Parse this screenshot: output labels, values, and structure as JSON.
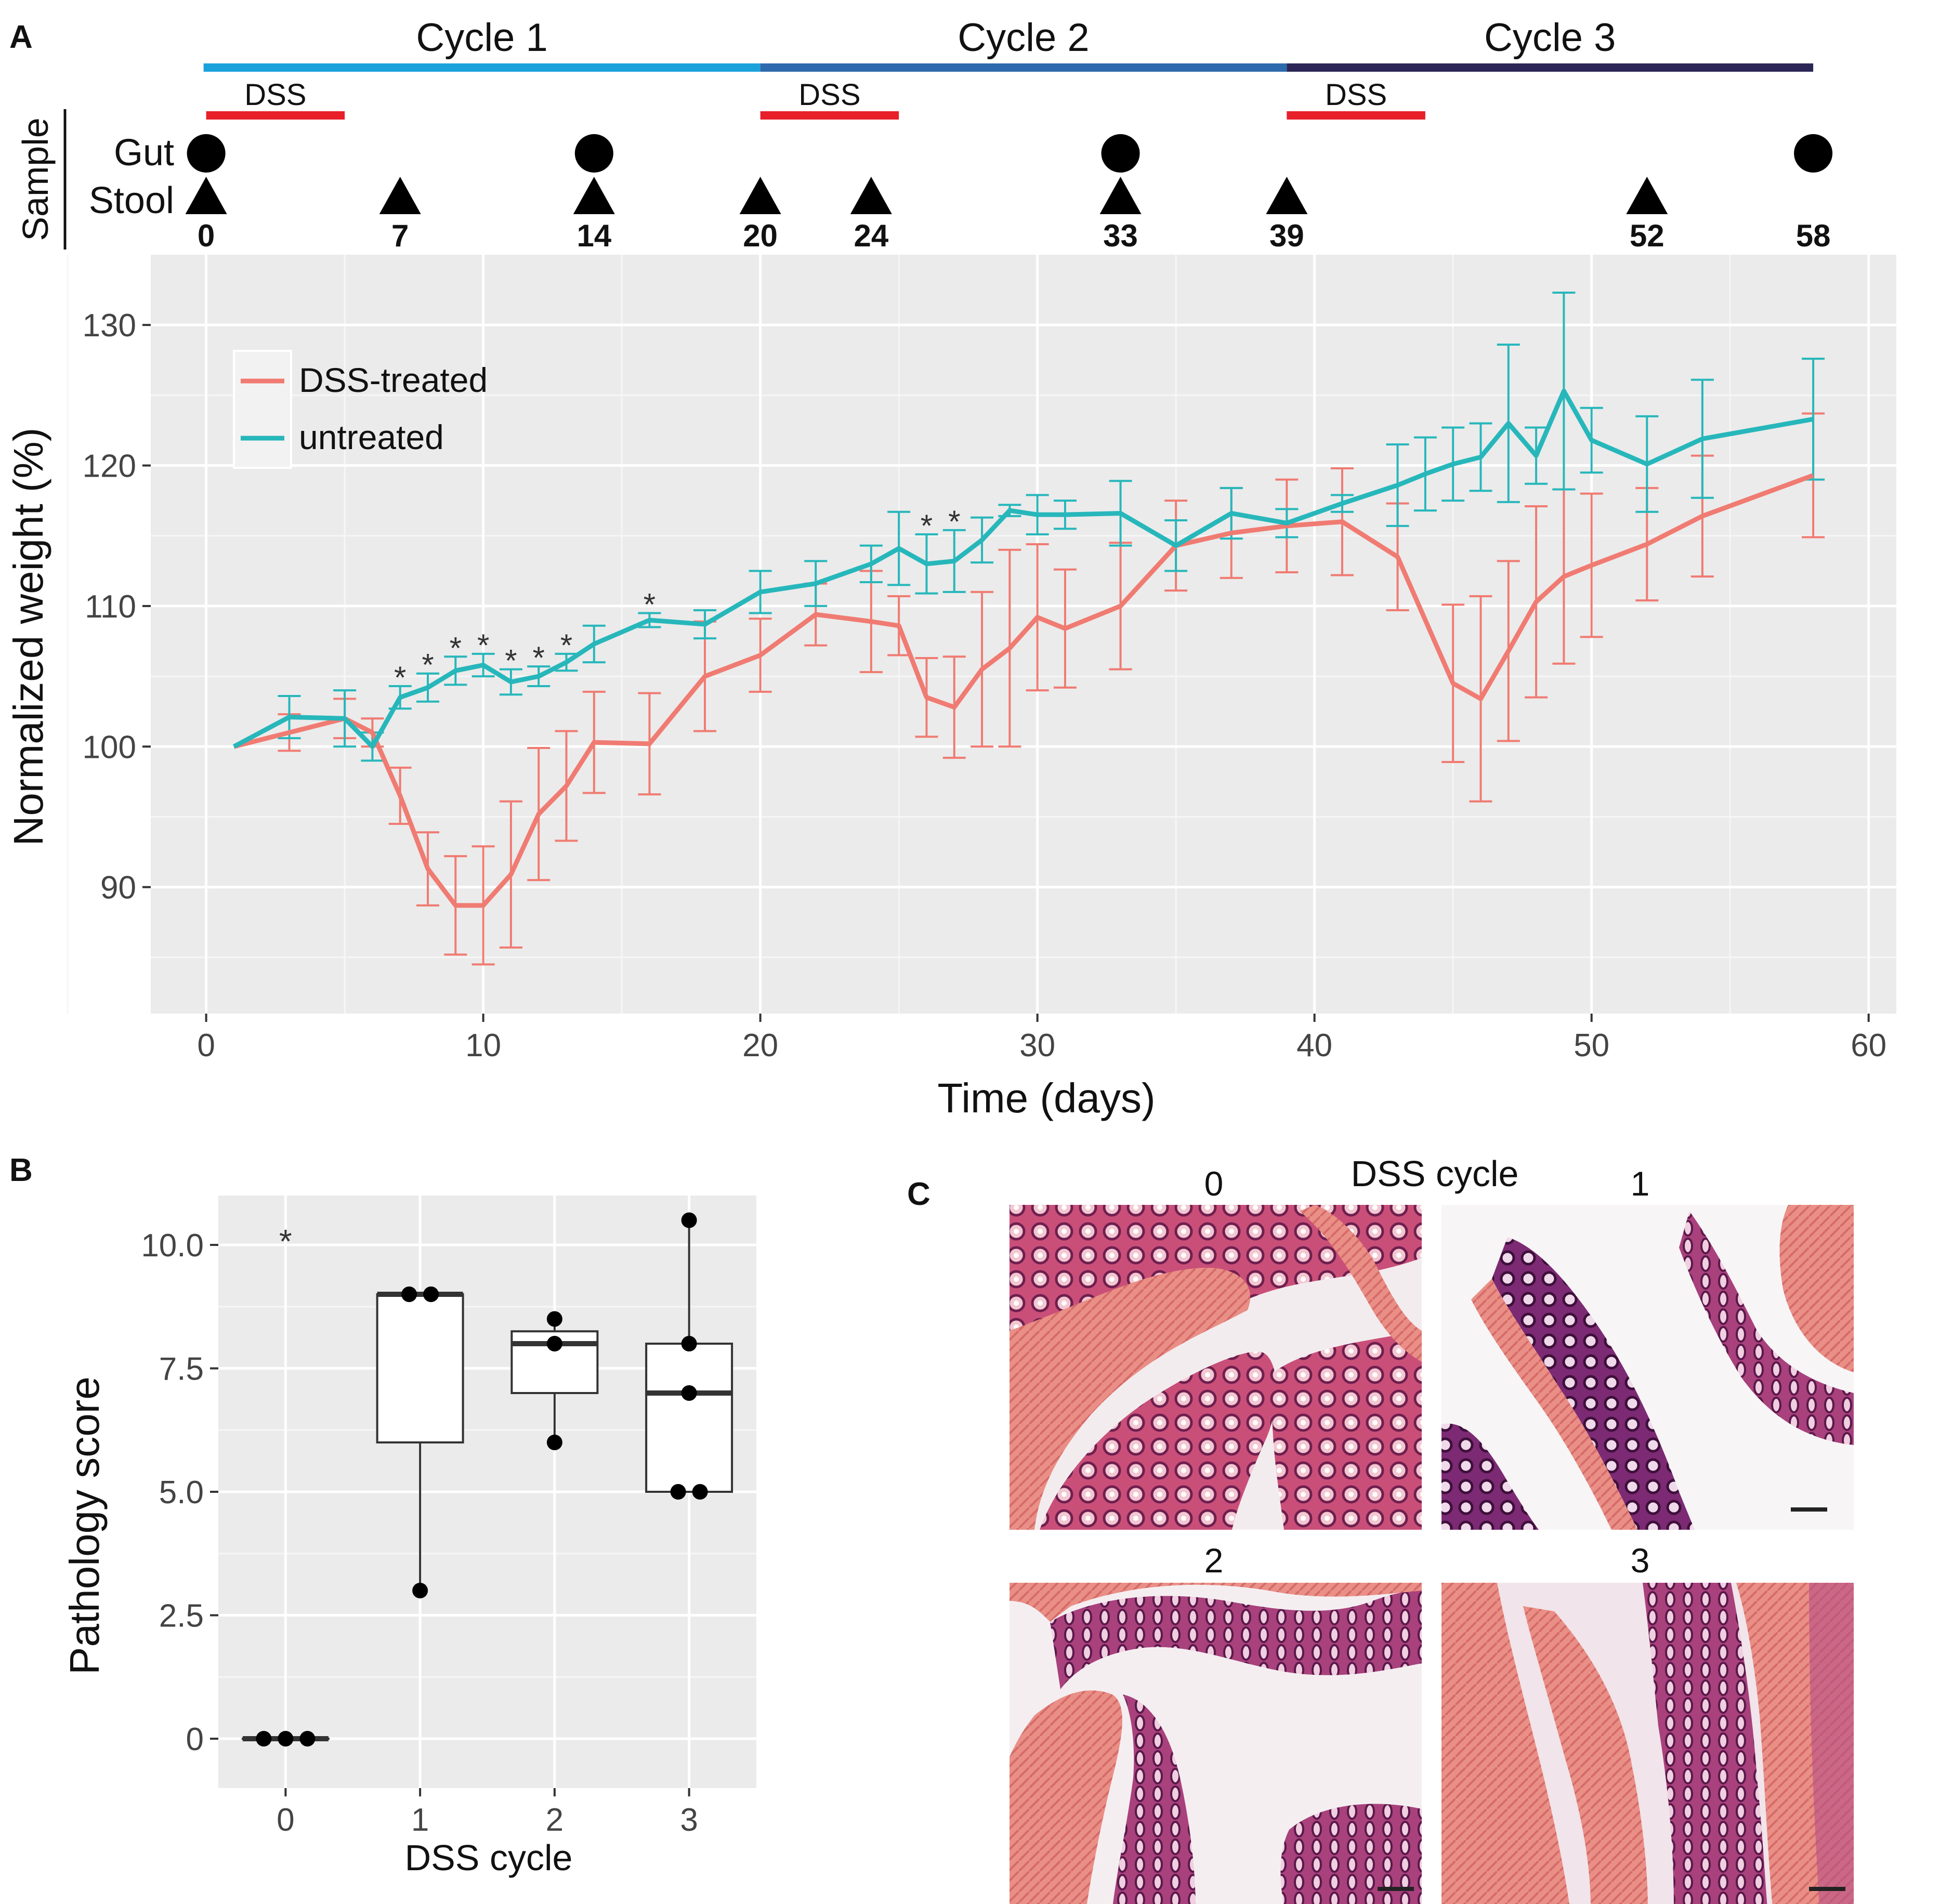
{
  "panel_labels": {
    "a": "A",
    "b": "B",
    "c": "C"
  },
  "timeline": {
    "cycles": [
      {
        "label": "Cycle 1",
        "start": 0,
        "end": 20,
        "color": "#1ba2db"
      },
      {
        "label": "Cycle 2",
        "start": 20,
        "end": 39,
        "color": "#2d6aad"
      },
      {
        "label": "Cycle 3",
        "start": 39,
        "end": 58,
        "color": "#2b2656"
      }
    ],
    "dss_bars": [
      {
        "label": "DSS",
        "start": 0,
        "end": 5
      },
      {
        "label": "DSS",
        "start": 20,
        "end": 25
      },
      {
        "label": "DSS",
        "start": 39,
        "end": 44
      }
    ],
    "sample_label": "Sample",
    "gut_label": "Gut",
    "stool_label": "Stool",
    "gut_days": [
      0,
      14,
      33,
      58
    ],
    "stool_days": [
      0,
      7,
      14,
      20,
      24,
      33,
      39,
      52
    ],
    "day_labels": [
      "0",
      "7",
      "14",
      "20",
      "24",
      "33",
      "39",
      "52",
      "58"
    ],
    "day_positions": [
      0,
      7,
      14,
      20,
      24,
      33,
      39,
      52,
      58
    ],
    "dss_color": "#e8202a"
  },
  "chart_data": [
    {
      "type": "line",
      "title": "",
      "xlabel": "Time (days)",
      "ylabel": "Normalized weight (%)",
      "xlim": [
        -2,
        61
      ],
      "ylim": [
        81,
        135
      ],
      "xticks": [
        0,
        10,
        20,
        30,
        40,
        50,
        60
      ],
      "yticks": [
        90,
        100,
        110,
        120,
        130
      ],
      "legend": {
        "position": "top-left",
        "entries": [
          "DSS-treated",
          "untreated"
        ]
      },
      "series": [
        {
          "name": "DSS-treated",
          "color": "#f07b72",
          "x": [
            1,
            3,
            5,
            6,
            7,
            8,
            9,
            10,
            11,
            12,
            13,
            14,
            16,
            18,
            20,
            22,
            24,
            25,
            26,
            27,
            28,
            29,
            30,
            31,
            33,
            35,
            37,
            39,
            41,
            43,
            45,
            46,
            47,
            48,
            49,
            50,
            52,
            54,
            58
          ],
          "y": [
            100,
            101,
            102,
            101,
            96.5,
            91.3,
            88.7,
            88.7,
            90.9,
            95.2,
            97.2,
            100.3,
            100.2,
            105,
            106.5,
            109.4,
            108.9,
            108.6,
            103.5,
            102.8,
            105.5,
            107,
            109.2,
            108.4,
            110,
            114.3,
            115.2,
            115.7,
            116,
            113.5,
            104.5,
            103.4,
            106.8,
            110.3,
            112.1,
            112.9,
            114.4,
            116.4,
            119.3
          ],
          "err": [
            0,
            1.3,
            1.4,
            1.0,
            2.0,
            2.6,
            3.5,
            4.2,
            5.2,
            4.7,
            3.9,
            3.6,
            3.6,
            3.9,
            2.6,
            2.2,
            3.6,
            2.1,
            2.8,
            3.6,
            5.5,
            7.0,
            5.2,
            4.2,
            4.5,
            3.2,
            3.2,
            3.3,
            3.8,
            3.8,
            5.6,
            7.3,
            6.4,
            6.8,
            6.2,
            5.1,
            4.0,
            4.3,
            4.4
          ]
        },
        {
          "name": "untreated",
          "color": "#27b7bb",
          "x": [
            1,
            3,
            5,
            6,
            7,
            8,
            9,
            10,
            11,
            12,
            13,
            14,
            16,
            18,
            20,
            22,
            24,
            25,
            26,
            27,
            28,
            29,
            30,
            31,
            33,
            35,
            37,
            39,
            41,
            43,
            44,
            45,
            46,
            47,
            48,
            49,
            50,
            52,
            54,
            58
          ],
          "y": [
            100,
            102.1,
            102,
            100,
            103.5,
            104.2,
            105.4,
            105.8,
            104.6,
            105,
            106,
            107.3,
            109,
            108.7,
            111,
            111.6,
            113,
            114.1,
            113,
            113.2,
            114.7,
            116.8,
            116.5,
            116.5,
            116.6,
            114.3,
            116.6,
            115.9,
            117.3,
            118.6,
            119.4,
            120.1,
            120.6,
            123,
            120.7,
            125.3,
            121.8,
            120.1,
            121.9,
            123.3
          ],
          "err": [
            0,
            1.5,
            2.0,
            1.0,
            0.8,
            1.0,
            1.0,
            0.8,
            0.9,
            0.7,
            0.6,
            1.3,
            0.5,
            1.0,
            1.5,
            1.6,
            1.3,
            2.6,
            2.1,
            2.2,
            1.6,
            0.4,
            1.4,
            1.0,
            2.3,
            1.8,
            1.8,
            1.0,
            0.6,
            2.9,
            2.6,
            2.6,
            2.4,
            5.6,
            2.0,
            7.0,
            2.3,
            3.4,
            4.2,
            4.3
          ]
        }
      ],
      "significance_marker": "*",
      "significance_days": [
        7,
        8,
        9,
        10,
        11,
        12,
        13,
        16,
        26,
        27
      ]
    },
    {
      "type": "box",
      "title": "",
      "xlabel": "DSS cycle",
      "ylabel": "Pathology score",
      "categories": [
        "0",
        "1",
        "2",
        "3"
      ],
      "ylim": [
        -1,
        11
      ],
      "yticks": [
        0,
        2.5,
        5,
        7.5,
        10
      ],
      "ytick_labels": [
        "0",
        "2.5",
        "5.0",
        "7.5",
        "10.0"
      ],
      "boxes": [
        {
          "category": "0",
          "min": 0,
          "q1": 0,
          "median": 0,
          "q3": 0,
          "max": 0
        },
        {
          "category": "1",
          "min": 3,
          "q1": 6,
          "median": 9,
          "q3": 9,
          "max": 9
        },
        {
          "category": "2",
          "min": 6,
          "q1": 7,
          "median": 8,
          "q3": 8.25,
          "max": 8.5
        },
        {
          "category": "3",
          "min": 5,
          "q1": 5,
          "median": 7,
          "q3": 8,
          "max": 10.5
        }
      ],
      "points": [
        {
          "category": "0",
          "values": [
            0,
            0,
            0
          ]
        },
        {
          "category": "1",
          "values": [
            9,
            9,
            3
          ]
        },
        {
          "category": "2",
          "values": [
            8.5,
            8,
            6
          ]
        },
        {
          "category": "3",
          "values": [
            10.5,
            8,
            7,
            5,
            5
          ]
        }
      ],
      "annotation": {
        "text": "*",
        "category": "0",
        "y": 10.2
      }
    }
  ],
  "panel_c": {
    "title": "DSS cycle",
    "images": [
      {
        "label": "0",
        "description": "H&E stained colon section"
      },
      {
        "label": "1",
        "description": "H&E stained colon section"
      },
      {
        "label": "2",
        "description": "H&E stained colon section"
      },
      {
        "label": "3",
        "description": "H&E stained colon section"
      }
    ]
  }
}
